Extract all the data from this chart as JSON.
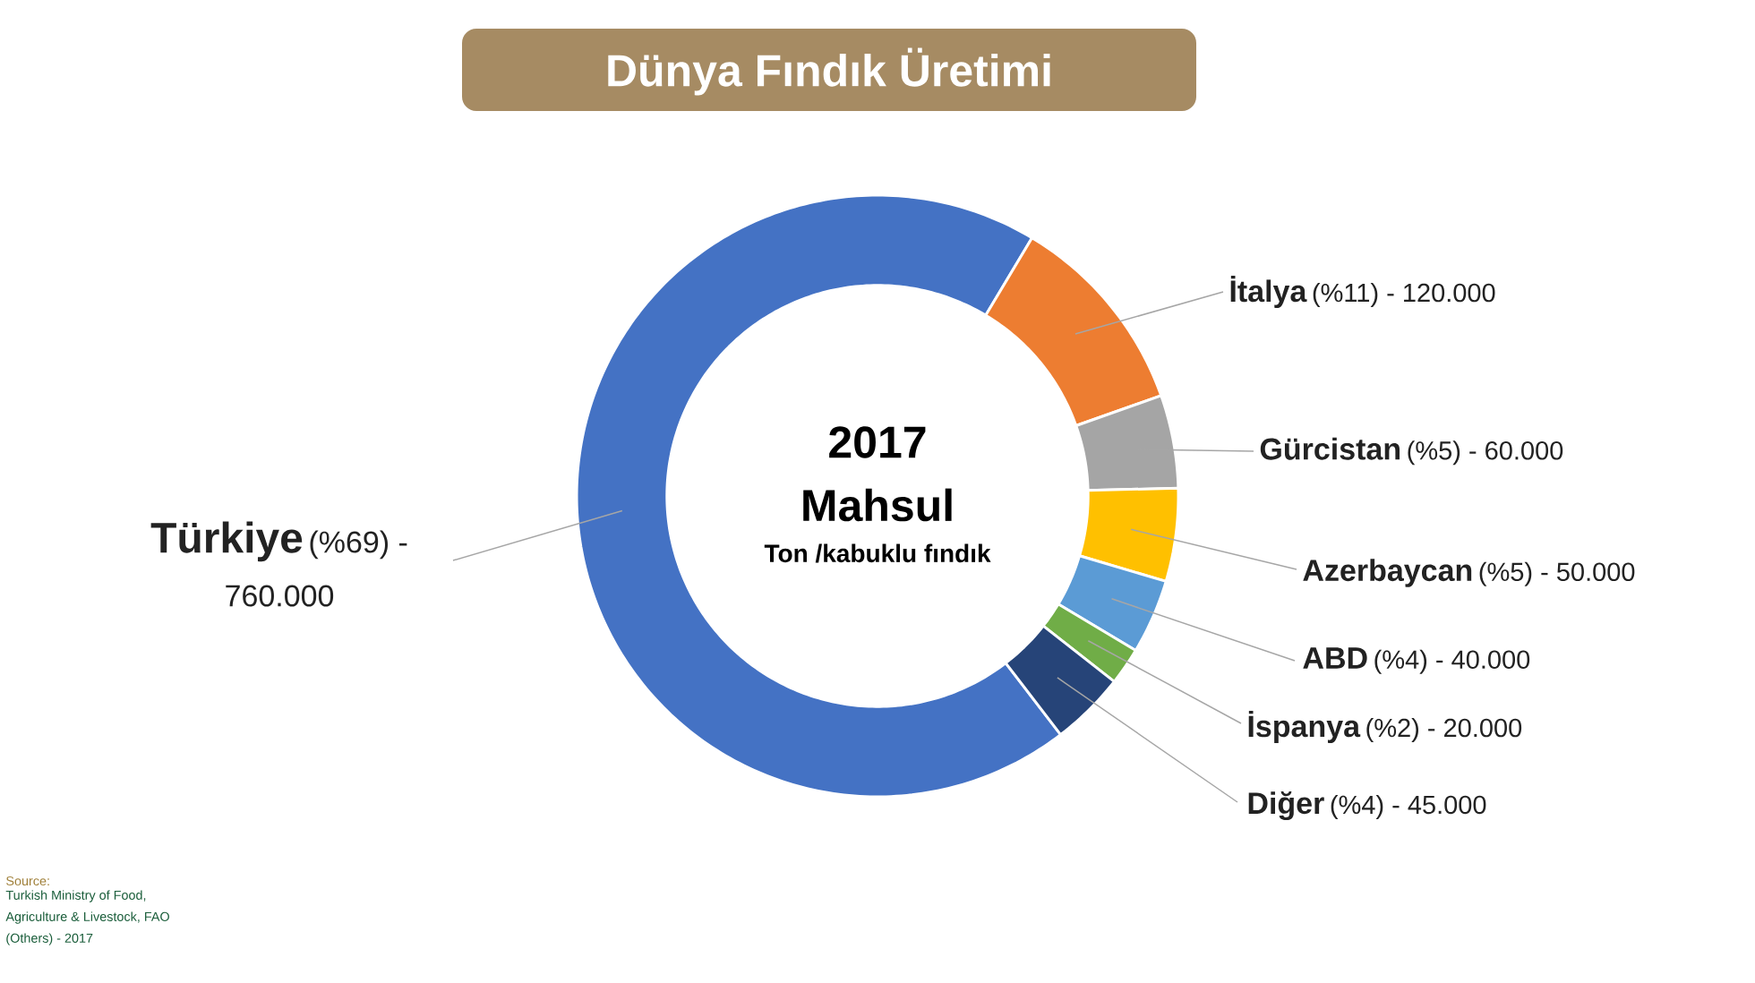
{
  "chart_data": {
    "type": "donut",
    "title": "Dünya Fındık Üretimi",
    "categories": [
      "Türkiye",
      "İtalya",
      "Gürcistan",
      "Azerbaycan",
      "ABD",
      "İspanya",
      "Diğer"
    ],
    "values": [
      69,
      11,
      5,
      5,
      4,
      2,
      4
    ],
    "colors": [
      "#4472c4",
      "#ed7d31",
      "#a5a5a5",
      "#ffc000",
      "#5b9bd5",
      "#70ad47",
      "#264478"
    ],
    "value_labels": [
      "(%69) - 760.000",
      "(%11) - 120.000",
      "(%5) - 60.000",
      "(%5) - 50.000",
      "(%4) - 40.000",
      "(%2) - 20.000",
      "(%4) - 45.000"
    ],
    "annotations": [
      "2017",
      "Mahsul",
      "Ton /kabuklu fındık",
      "Source:",
      "Turkish Ministry of Food, Agriculture & Livestock, FAO (Others) - 2017"
    ]
  }
}
